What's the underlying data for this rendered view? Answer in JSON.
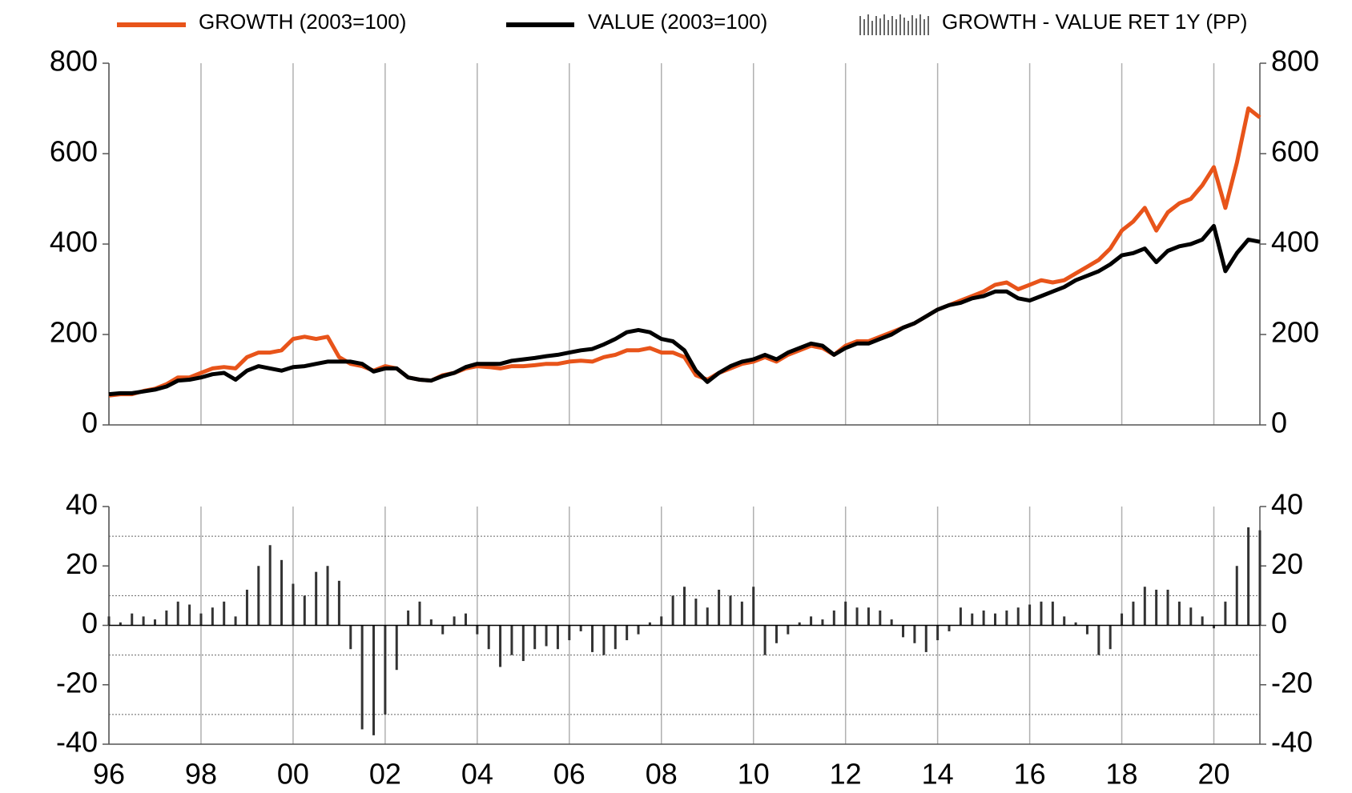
{
  "chart_data": [
    {
      "type": "line",
      "x": [
        1996,
        1996.25,
        1996.5,
        1996.75,
        1997,
        1997.25,
        1997.5,
        1997.75,
        1998,
        1998.25,
        1998.5,
        1998.75,
        1999,
        1999.25,
        1999.5,
        1999.75,
        2000,
        2000.25,
        2000.5,
        2000.75,
        2001,
        2001.25,
        2001.5,
        2001.75,
        2002,
        2002.25,
        2002.5,
        2002.75,
        2003,
        2003.25,
        2003.5,
        2003.75,
        2004,
        2004.25,
        2004.5,
        2004.75,
        2005,
        2005.25,
        2005.5,
        2005.75,
        2006,
        2006.25,
        2006.5,
        2006.75,
        2007,
        2007.25,
        2007.5,
        2007.75,
        2008,
        2008.25,
        2008.5,
        2008.75,
        2009,
        2009.25,
        2009.5,
        2009.75,
        2010,
        2010.25,
        2010.5,
        2010.75,
        2011,
        2011.25,
        2011.5,
        2011.75,
        2012,
        2012.25,
        2012.5,
        2012.75,
        2013,
        2013.25,
        2013.5,
        2013.75,
        2014,
        2014.25,
        2014.5,
        2014.75,
        2015,
        2015.25,
        2015.5,
        2015.75,
        2016,
        2016.25,
        2016.5,
        2016.75,
        2017,
        2017.25,
        2017.5,
        2017.75,
        2018,
        2018.25,
        2018.5,
        2018.75,
        2019,
        2019.25,
        2019.5,
        2019.75,
        2020,
        2020.25,
        2020.5,
        2020.75,
        2021
      ],
      "series": [
        {
          "name": "GROWTH (2003=100)",
          "color": "#e8541a",
          "values": [
            65,
            68,
            68,
            75,
            80,
            90,
            105,
            105,
            115,
            125,
            128,
            125,
            150,
            160,
            160,
            165,
            190,
            195,
            190,
            195,
            150,
            135,
            130,
            120,
            130,
            125,
            105,
            100,
            98,
            110,
            115,
            125,
            130,
            128,
            125,
            130,
            130,
            132,
            135,
            135,
            140,
            142,
            140,
            150,
            155,
            165,
            165,
            170,
            160,
            160,
            150,
            110,
            100,
            115,
            125,
            135,
            140,
            150,
            140,
            155,
            165,
            175,
            170,
            155,
            175,
            185,
            185,
            195,
            205,
            215,
            225,
            240,
            255,
            265,
            275,
            285,
            295,
            310,
            315,
            300,
            310,
            320,
            315,
            320,
            335,
            350,
            365,
            390,
            430,
            450,
            480,
            430,
            470,
            490,
            500,
            530,
            570,
            480,
            580,
            700,
            680
          ]
        },
        {
          "name": "VALUE (2003=100)",
          "color": "#000000",
          "values": [
            68,
            70,
            70,
            74,
            78,
            85,
            98,
            100,
            105,
            112,
            115,
            100,
            120,
            130,
            125,
            120,
            128,
            130,
            135,
            140,
            140,
            140,
            135,
            118,
            125,
            125,
            105,
            100,
            98,
            108,
            115,
            128,
            135,
            135,
            135,
            142,
            145,
            148,
            152,
            155,
            160,
            165,
            168,
            178,
            190,
            205,
            210,
            205,
            190,
            185,
            165,
            120,
            95,
            115,
            130,
            140,
            145,
            155,
            145,
            160,
            170,
            180,
            175,
            155,
            170,
            180,
            180,
            190,
            200,
            215,
            225,
            240,
            255,
            265,
            270,
            280,
            285,
            295,
            295,
            280,
            275,
            285,
            295,
            305,
            320,
            330,
            340,
            355,
            375,
            380,
            390,
            360,
            385,
            395,
            400,
            410,
            440,
            340,
            380,
            410,
            405
          ]
        }
      ],
      "ylim": [
        0,
        800
      ],
      "yticks": [
        0,
        200,
        400,
        600,
        800
      ],
      "y2lim": [
        0,
        800
      ],
      "y2ticks": [
        0,
        200,
        400,
        600,
        800
      ],
      "xlim": [
        1996,
        2021
      ],
      "grid": true
    },
    {
      "type": "bar",
      "x": [
        1996,
        1996.25,
        1996.5,
        1996.75,
        1997,
        1997.25,
        1997.5,
        1997.75,
        1998,
        1998.25,
        1998.5,
        1998.75,
        1999,
        1999.25,
        1999.5,
        1999.75,
        2000,
        2000.25,
        2000.5,
        2000.75,
        2001,
        2001.25,
        2001.5,
        2001.75,
        2002,
        2002.25,
        2002.5,
        2002.75,
        2003,
        2003.25,
        2003.5,
        2003.75,
        2004,
        2004.25,
        2004.5,
        2004.75,
        2005,
        2005.25,
        2005.5,
        2005.75,
        2006,
        2006.25,
        2006.5,
        2006.75,
        2007,
        2007.25,
        2007.5,
        2007.75,
        2008,
        2008.25,
        2008.5,
        2008.75,
        2009,
        2009.25,
        2009.5,
        2009.75,
        2010,
        2010.25,
        2010.5,
        2010.75,
        2011,
        2011.25,
        2011.5,
        2011.75,
        2012,
        2012.25,
        2012.5,
        2012.75,
        2013,
        2013.25,
        2013.5,
        2013.75,
        2014,
        2014.25,
        2014.5,
        2014.75,
        2015,
        2015.25,
        2015.5,
        2015.75,
        2016,
        2016.25,
        2016.5,
        2016.75,
        2017,
        2017.25,
        2017.5,
        2017.75,
        2018,
        2018.25,
        2018.5,
        2018.75,
        2019,
        2019.25,
        2019.5,
        2019.75,
        2020,
        2020.25,
        2020.5,
        2020.75,
        2021
      ],
      "series": [
        {
          "name": "GROWTH - VALUE RET 1Y (PP)",
          "color": "#333333",
          "values": [
            3,
            1,
            4,
            3,
            2,
            5,
            8,
            7,
            4,
            6,
            8,
            3,
            12,
            20,
            27,
            22,
            14,
            10,
            18,
            20,
            15,
            -8,
            -35,
            -37,
            -30,
            -15,
            5,
            8,
            2,
            -3,
            3,
            4,
            -3,
            -8,
            -14,
            -10,
            -12,
            -8,
            -7,
            -8,
            -5,
            -2,
            -9,
            -10,
            -8,
            -5,
            -3,
            1,
            3,
            10,
            13,
            9,
            6,
            12,
            10,
            8,
            13,
            -10,
            -6,
            -3,
            1,
            3,
            2,
            5,
            8,
            6,
            6,
            5,
            2,
            -4,
            -6,
            -9,
            -5,
            -2,
            6,
            4,
            5,
            4,
            5,
            6,
            7,
            8,
            8,
            3,
            1,
            -3,
            -10,
            -8,
            4,
            8,
            13,
            12,
            12,
            8,
            6,
            3,
            -1,
            8,
            20,
            33,
            32
          ]
        }
      ],
      "ylim": [
        -40,
        40
      ],
      "yticks": [
        -40,
        -20,
        0,
        20,
        40
      ],
      "minor_yticks": [
        -30,
        -10,
        10,
        30
      ],
      "y2lim": [
        -40,
        40
      ],
      "y2ticks": [
        -40,
        -20,
        0,
        20,
        40
      ],
      "xlim": [
        1996,
        2021
      ],
      "xticks": [
        {
          "value": 1996,
          "label": "96"
        },
        {
          "value": 1998,
          "label": "98"
        },
        {
          "value": 2000,
          "label": "00"
        },
        {
          "value": 2002,
          "label": "02"
        },
        {
          "value": 2004,
          "label": "04"
        },
        {
          "value": 2006,
          "label": "06"
        },
        {
          "value": 2008,
          "label": "08"
        },
        {
          "value": 2010,
          "label": "10"
        },
        {
          "value": 2012,
          "label": "12"
        },
        {
          "value": 2014,
          "label": "14"
        },
        {
          "value": 2016,
          "label": "16"
        },
        {
          "value": 2018,
          "label": "18"
        },
        {
          "value": 2020,
          "label": "20"
        }
      ],
      "grid": true
    }
  ]
}
